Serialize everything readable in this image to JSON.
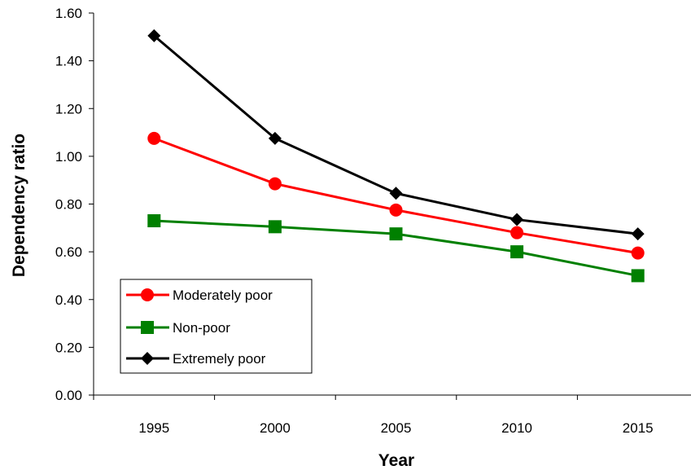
{
  "chart_data": {
    "type": "line",
    "title": "",
    "xlabel": "Year",
    "ylabel": "Dependency ratio",
    "categories": [
      "1995",
      "2000",
      "2005",
      "2010",
      "2015"
    ],
    "ylim": [
      0,
      1.6
    ],
    "yticks": [
      "0.00",
      "0.20",
      "0.40",
      "0.60",
      "0.80",
      "1.00",
      "1.20",
      "1.40",
      "1.60"
    ],
    "grid": false,
    "legend_position": "bottom-left",
    "series": [
      {
        "name": "Moderately poor",
        "values": [
          1.075,
          0.885,
          0.775,
          0.68,
          0.595
        ],
        "color": "#ff0000",
        "marker": "circle"
      },
      {
        "name": "Non-poor",
        "values": [
          0.73,
          0.705,
          0.675,
          0.6,
          0.5
        ],
        "color": "#008000",
        "marker": "square"
      },
      {
        "name": "Extremely poor",
        "values": [
          1.505,
          1.075,
          0.845,
          0.735,
          0.675
        ],
        "color": "#000000",
        "marker": "diamond"
      }
    ]
  }
}
